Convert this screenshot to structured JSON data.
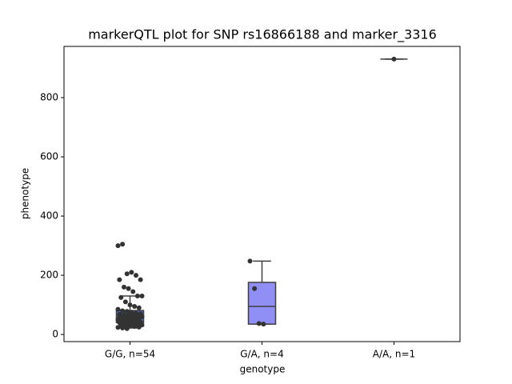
{
  "chart_data": {
    "type": "box",
    "title": "markerQTL plot for SNP rs16866188 and marker_3316",
    "xlabel": "genotype",
    "ylabel": "phenotype",
    "categories": [
      "G/G, n=54",
      "G/A, n=4",
      "A/A, n=1"
    ],
    "boxes": [
      {
        "color": "#4a6fd0",
        "whislo": 22,
        "q1": 40,
        "median": 60,
        "q3": 81,
        "whishi": 130,
        "points": [
          300,
          305,
          205,
          210,
          200,
          185,
          185,
          160,
          155,
          145,
          130,
          130,
          125,
          110,
          100,
          95,
          90,
          85,
          80,
          78,
          75,
          72,
          70,
          68,
          66,
          65,
          63,
          62,
          60,
          58,
          57,
          55,
          54,
          52,
          50,
          48,
          47,
          45,
          44,
          42,
          40,
          38,
          36,
          35,
          33,
          32,
          30,
          30,
          28,
          27,
          25,
          24,
          22,
          20
        ]
      },
      {
        "color": "#8f8ff5",
        "whislo": 35,
        "q1": 35,
        "median": 95,
        "q3": 176,
        "whishi": 248,
        "points": [
          248,
          155,
          37,
          35
        ]
      },
      {
        "color": "#6b6bd6",
        "whislo": 930,
        "q1": 930,
        "median": 930,
        "q3": 930,
        "whishi": 930,
        "points": [
          930
        ]
      }
    ],
    "point_color": "#333333",
    "ylim": [
      -24,
      973
    ],
    "yticks": [
      0,
      200,
      400,
      600,
      800
    ]
  }
}
